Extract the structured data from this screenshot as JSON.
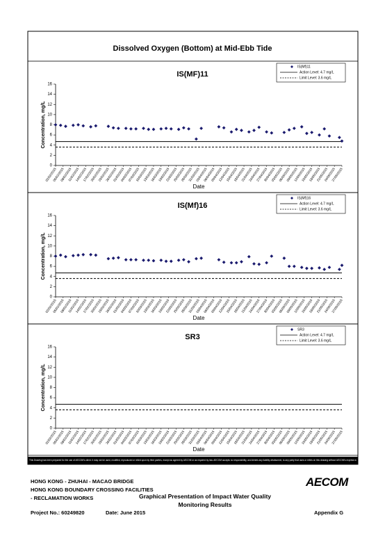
{
  "title": "Dissolved Oxygen (Bottom) at Mid-Ebb Tide",
  "chart_data": [
    {
      "type": "scatter",
      "title": "IS(MF)11",
      "y_label": "Concentration, mg/L",
      "x_label": "Date",
      "xlim": [
        "02/02/2015",
        "27/05/2015"
      ],
      "xticks": [
        "02/02/2015",
        "05/02/2015",
        "08/02/2015",
        "11/02/2015",
        "14/02/2015",
        "17/02/2015",
        "20/02/2015",
        "23/02/2015",
        "26/02/2015",
        "01/03/2015",
        "04/03/2015",
        "07/03/2015",
        "10/03/2015",
        "13/03/2015",
        "16/03/2015",
        "19/03/2015",
        "22/03/2015",
        "25/03/2015",
        "28/03/2015",
        "31/03/2015",
        "03/04/2015",
        "06/04/2015",
        "09/04/2015",
        "12/04/2015",
        "15/04/2015",
        "18/04/2015",
        "21/04/2015",
        "24/04/2015",
        "27/04/2015",
        "30/04/2015",
        "03/05/2015",
        "06/05/2015",
        "09/05/2015",
        "12/05/2015",
        "15/05/2015",
        "18/05/2015",
        "21/05/2015",
        "24/05/2015",
        "27/05/2015"
      ],
      "ylim": [
        0,
        16
      ],
      "yticks": [
        0,
        2,
        4,
        6,
        8,
        10,
        12,
        14,
        16
      ],
      "series": [
        {
          "name": "IS(Mf)11",
          "color": "#1a1a6e",
          "x": [
            "02/02/2015",
            "04/02/2015",
            "06/02/2015",
            "09/02/2015",
            "11/02/2015",
            "13/02/2015",
            "16/02/2015",
            "18/02/2015",
            "23/02/2015",
            "25/02/2015",
            "27/02/2015",
            "02/03/2015",
            "04/03/2015",
            "06/03/2015",
            "09/03/2015",
            "11/03/2015",
            "13/03/2015",
            "16/03/2015",
            "18/03/2015",
            "20/03/2015",
            "23/03/2015",
            "25/03/2015",
            "27/03/2015",
            "30/03/2015",
            "01/04/2015",
            "08/04/2015",
            "10/04/2015",
            "13/04/2015",
            "15/04/2015",
            "17/04/2015",
            "20/04/2015",
            "22/04/2015",
            "24/04/2015",
            "27/04/2015",
            "29/04/2015",
            "04/05/2015",
            "06/05/2015",
            "08/05/2015",
            "11/05/2015",
            "13/05/2015",
            "15/05/2015",
            "18/05/2015",
            "20/05/2015",
            "22/05/2015",
            "26/05/2015",
            "27/05/2015"
          ],
          "values": [
            8.0,
            7.9,
            7.7,
            7.9,
            8.0,
            7.8,
            7.6,
            7.8,
            7.7,
            7.4,
            7.3,
            7.3,
            7.2,
            7.2,
            7.3,
            7.1,
            7.1,
            7.2,
            7.3,
            7.2,
            7.1,
            7.4,
            7.2,
            5.2,
            7.3,
            7.6,
            7.4,
            6.6,
            7.1,
            6.9,
            6.6,
            6.9,
            7.5,
            6.6,
            6.4,
            6.5,
            7.0,
            7.3,
            7.6,
            6.3,
            6.5,
            6.0,
            7.2,
            5.8,
            5.5,
            4.8
          ]
        }
      ],
      "reference_lines": [
        {
          "name": "Action Level: 4.7 mg/L",
          "value": 4.7,
          "style": "solid"
        },
        {
          "name": "Limit Level: 3.6 mg/L",
          "value": 3.6,
          "style": "dashed"
        }
      ]
    },
    {
      "type": "scatter",
      "title": "IS(Mf)16",
      "y_label": "Concentration, mg/L",
      "x_label": "Date",
      "xlim": [
        "02/02/2015",
        "27/05/2015"
      ],
      "xticks": [
        "02/02/2015",
        "05/02/2015",
        "08/02/2015",
        "11/02/2015",
        "14/02/2015",
        "17/02/2015",
        "20/02/2015",
        "23/02/2015",
        "26/02/2015",
        "01/03/2015",
        "04/03/2015",
        "07/03/2015",
        "10/03/2015",
        "13/03/2015",
        "16/03/2015",
        "19/03/2015",
        "22/03/2015",
        "25/03/2015",
        "28/03/2015",
        "31/03/2015",
        "03/04/2015",
        "06/04/2015",
        "09/04/2015",
        "12/04/2015",
        "15/04/2015",
        "18/04/2015",
        "21/04/2015",
        "24/04/2015",
        "27/04/2015",
        "30/04/2015",
        "03/05/2015",
        "06/05/2015",
        "09/05/2015",
        "12/05/2015",
        "15/05/2015",
        "18/05/2015",
        "21/05/2015",
        "24/05/2015",
        "27/05/2015"
      ],
      "ylim": [
        0,
        16
      ],
      "yticks": [
        0,
        2,
        4,
        6,
        8,
        10,
        12,
        14,
        16
      ],
      "series": [
        {
          "name": "IS(Mf)16",
          "color": "#1a1a6e",
          "x": [
            "02/02/2015",
            "04/02/2015",
            "06/02/2015",
            "09/02/2015",
            "11/02/2015",
            "13/02/2015",
            "16/02/2015",
            "18/02/2015",
            "23/02/2015",
            "25/02/2015",
            "27/02/2015",
            "02/03/2015",
            "04/03/2015",
            "06/03/2015",
            "09/03/2015",
            "11/03/2015",
            "13/03/2015",
            "16/03/2015",
            "18/03/2015",
            "20/03/2015",
            "23/03/2015",
            "25/03/2015",
            "27/03/2015",
            "30/03/2015",
            "01/04/2015",
            "08/04/2015",
            "10/04/2015",
            "13/04/2015",
            "15/04/2015",
            "17/04/2015",
            "20/04/2015",
            "22/04/2015",
            "24/04/2015",
            "27/04/2015",
            "29/04/2015",
            "04/05/2015",
            "06/05/2015",
            "08/05/2015",
            "11/05/2015",
            "13/05/2015",
            "15/05/2015",
            "18/05/2015",
            "20/05/2015",
            "22/05/2015",
            "26/05/2015",
            "27/05/2015"
          ],
          "values": [
            8.0,
            8.2,
            7.9,
            8.1,
            8.2,
            8.3,
            8.3,
            8.2,
            7.5,
            7.6,
            7.7,
            7.3,
            7.3,
            7.3,
            7.2,
            7.2,
            7.1,
            7.2,
            7.0,
            7.0,
            7.2,
            7.3,
            6.9,
            7.5,
            7.6,
            7.3,
            6.8,
            6.7,
            6.7,
            6.9,
            7.9,
            6.5,
            6.4,
            6.7,
            8.0,
            7.6,
            6.0,
            6.0,
            5.8,
            5.6,
            5.6,
            5.7,
            5.4,
            5.8,
            5.4,
            6.2
          ]
        }
      ],
      "reference_lines": [
        {
          "name": "Action Level: 4.7 mg/L",
          "value": 4.7,
          "style": "solid"
        },
        {
          "name": "Limit Level: 3.6 mg/L",
          "value": 3.6,
          "style": "dashed"
        }
      ]
    },
    {
      "type": "scatter",
      "title": "SR3",
      "y_label": "Concentration, mg/L",
      "x_label": "Date",
      "xlim": [
        "02/02/2015",
        "27/05/2015"
      ],
      "xticks": [
        "02/02/2015",
        "05/02/2015",
        "08/02/2015",
        "11/02/2015",
        "14/02/2015",
        "17/02/2015",
        "20/02/2015",
        "23/02/2015",
        "26/02/2015",
        "01/03/2015",
        "04/03/2015",
        "07/03/2015",
        "10/03/2015",
        "13/03/2015",
        "16/03/2015",
        "19/03/2015",
        "22/03/2015",
        "25/03/2015",
        "28/03/2015",
        "31/03/2015",
        "03/04/2015",
        "06/04/2015",
        "09/04/2015",
        "12/04/2015",
        "15/04/2015",
        "18/04/2015",
        "21/04/2015",
        "24/04/2015",
        "27/04/2015",
        "30/04/2015",
        "03/05/2015",
        "06/05/2015",
        "09/05/2015",
        "12/05/2015",
        "15/05/2015",
        "18/05/2015",
        "21/05/2015",
        "24/05/2015",
        "27/05/2015"
      ],
      "ylim": [
        0,
        16
      ],
      "yticks": [
        0,
        2,
        4,
        6,
        8,
        10,
        12,
        14,
        16
      ],
      "series": [
        {
          "name": "SR3",
          "color": "#1a1a6e",
          "x": [],
          "values": []
        }
      ],
      "reference_lines": [
        {
          "name": "Action Level: 4.7 mg/L",
          "value": 4.7,
          "style": "solid"
        },
        {
          "name": "Limit Level: 3.6 mg/L",
          "value": 3.6,
          "style": "dashed"
        }
      ]
    }
  ],
  "footer": {
    "disclaimer": "This Drawing has been prepared for the use of AECOM's client. It may not be used, modified, reproduced or relied upon by third parties, except as agreed by AECOM or as required by law. AECOM accepts no responsibility, and denies any liability whatsoever, to any party that uses or relies on this drawing without AECOM's express written consent.",
    "project_lines": [
      "HONG KONG - ZHUHAI - MACAO BRIDGE",
      "HONG KONG BOUNDARY CROSSING FACILITIES",
      "- RECLAMATION WORKS"
    ],
    "drawing_title": [
      "Graphical Presentation of Impact Water Quality",
      "Monitoring Results"
    ],
    "logo": "AECOM",
    "project_no": "Project No.: 60249820",
    "date": "Date: June 2015",
    "appendix": "Appendix G"
  }
}
